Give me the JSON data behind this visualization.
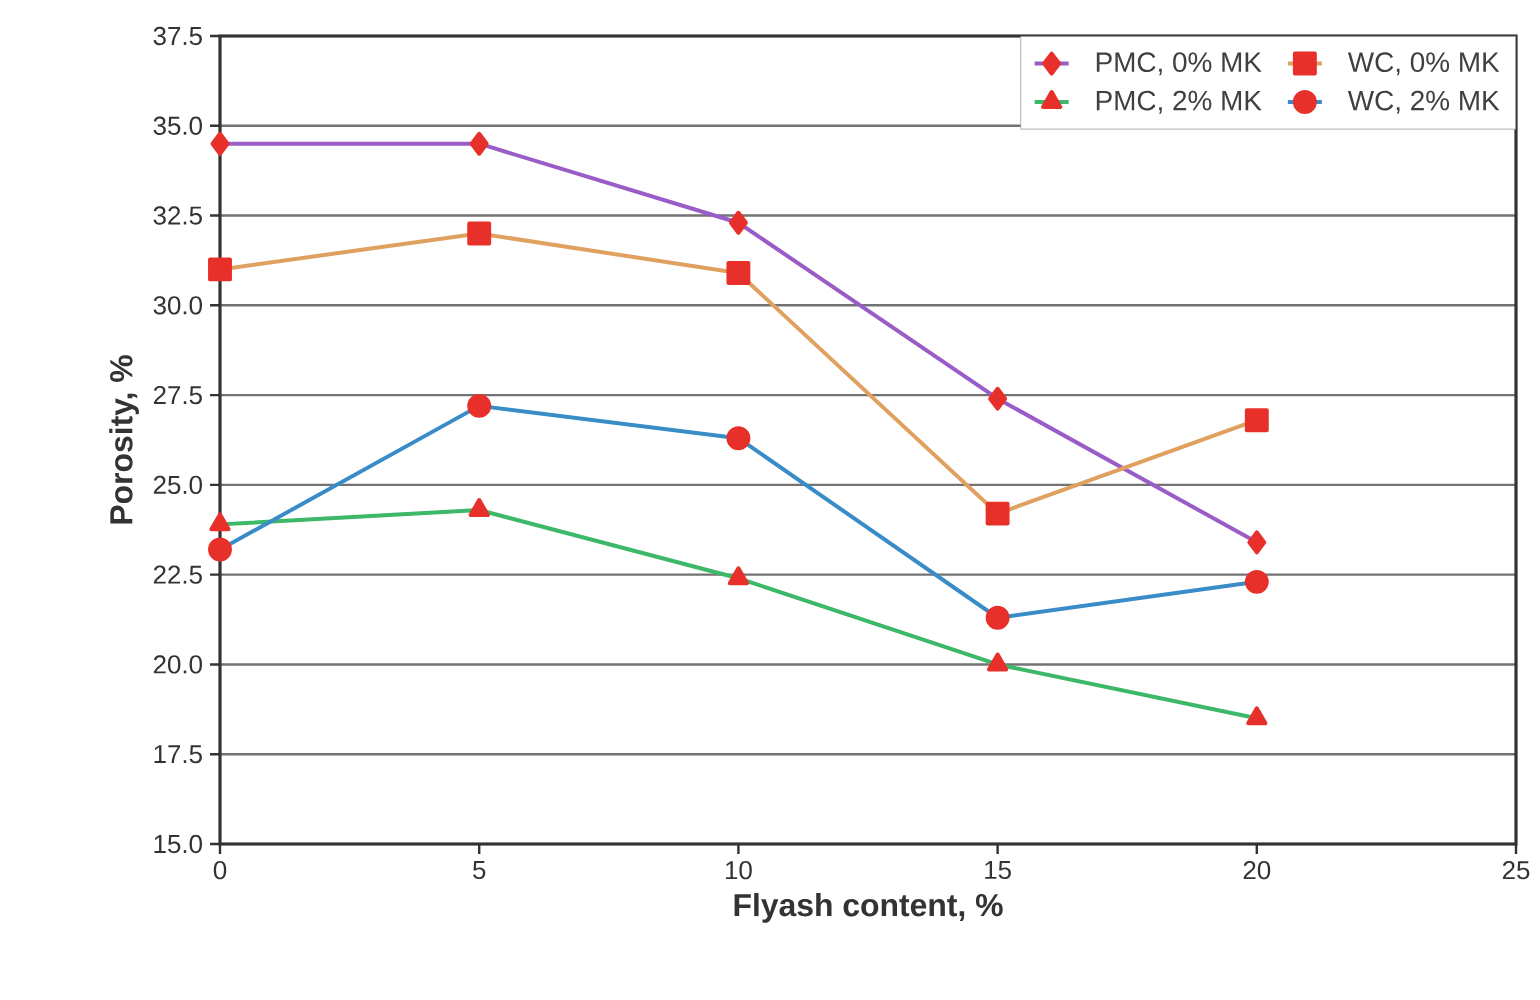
{
  "chart_data": {
    "type": "line",
    "xlabel": "Flyash content, %",
    "ylabel": "Porosity, %",
    "xlim": [
      0,
      25
    ],
    "xticks": [
      0,
      5,
      10,
      15,
      20,
      25
    ],
    "ylim": [
      15,
      37.5
    ],
    "yticks": [
      {
        "value": 15,
        "label": "15.0"
      },
      {
        "value": 17.5,
        "label": "17.5"
      },
      {
        "value": 20,
        "label": "20.0"
      },
      {
        "value": 22.5,
        "label": "22.5"
      },
      {
        "value": 25,
        "label": "25.0"
      },
      {
        "value": 27.5,
        "label": "27.5"
      },
      {
        "value": 30,
        "label": "30.0"
      },
      {
        "value": 32.5,
        "label": "32.5"
      },
      {
        "value": 35,
        "label": "35.0"
      },
      {
        "value": 37.5,
        "label": "37.5"
      }
    ],
    "grid": "y",
    "legend": "top right",
    "line_style": "solid",
    "x": [
      0,
      5,
      10,
      15,
      20
    ],
    "series": [
      {
        "name": "PMC, 0% MK",
        "color": "#9a5cc6",
        "colors": [
          "#e8302a",
          "#e8302a",
          "#e8302a",
          "#e8302a",
          "#e8302a"
        ],
        "marker": "diamond",
        "values": [
          34.5,
          34.5,
          32.3,
          27.4,
          23.4
        ]
      },
      {
        "name": "WC, 0% MK",
        "color": "#e0a060",
        "colors": [
          "#e8302a",
          "#e8302a",
          "#e8302a",
          "#e8302a",
          "#e8302a"
        ],
        "marker": "square",
        "values": [
          31.0,
          32.0,
          30.9,
          24.2,
          26.8
        ]
      },
      {
        "name": "PMC, 2% MK",
        "color": "#3cb868",
        "colors": [
          "#e8302a",
          "#e8302a",
          "#e8302a",
          "#e8302a",
          "#e8302a"
        ],
        "marker": "triangle",
        "values": [
          23.9,
          24.3,
          22.4,
          20.0,
          18.5
        ]
      },
      {
        "name": "WC, 2% MK",
        "color": "#3a8cc8",
        "colors": [
          "#e8302a",
          "#e8302a",
          "#e8302a",
          "#e8302a",
          "#e8302a"
        ],
        "marker": "circle",
        "values": [
          23.2,
          27.2,
          26.3,
          21.3,
          22.3
        ]
      }
    ]
  }
}
